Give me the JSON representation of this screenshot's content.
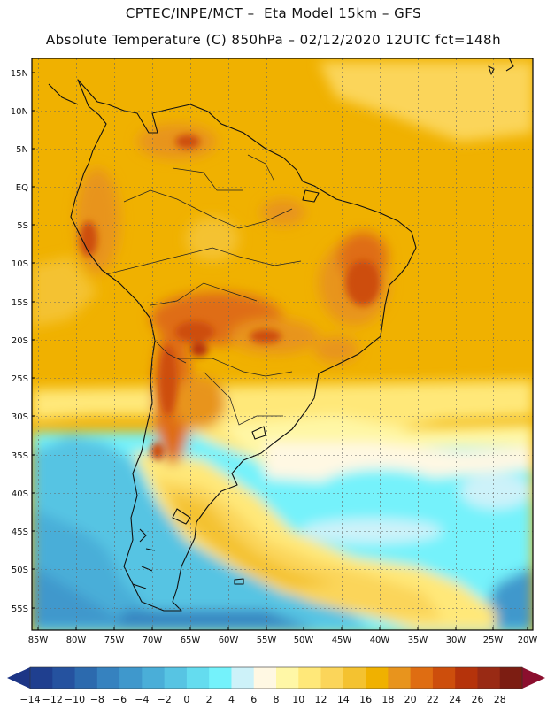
{
  "header": {
    "line1": "CPTEC/INPE/MCT –  Eta Model 15km – GFS",
    "line2": "Absolute Temperature (C) 850hPa – 02/12/2020 12UTC fct=148h"
  },
  "map": {
    "lat_labels": [
      "15N",
      "10N",
      "5N",
      "EQ",
      "5S",
      "10S",
      "15S",
      "20S",
      "25S",
      "30S",
      "35S",
      "40S",
      "45S",
      "50S",
      "55S"
    ],
    "lon_labels": [
      "85W",
      "80W",
      "75W",
      "70W",
      "65W",
      "60W",
      "55W",
      "50W",
      "45W",
      "40W",
      "35W",
      "30W",
      "25W",
      "20W"
    ]
  },
  "colorbar": {
    "labels": [
      "-14",
      "-12",
      "-10",
      "-8",
      "-6",
      "-4",
      "-2",
      "0",
      "2",
      "4",
      "6",
      "8",
      "10",
      "12",
      "14",
      "16",
      "18",
      "20",
      "22",
      "24",
      "26",
      "28"
    ],
    "colors": [
      "#1f3f8f",
      "#25529f",
      "#2c6aae",
      "#3682bf",
      "#3f98cc",
      "#4aaed8",
      "#57c4e3",
      "#64dcef",
      "#74f2fb",
      "#cdf2f9",
      "#fff8e3",
      "#fff7a6",
      "#ffe879",
      "#fbd55a",
      "#f4c230",
      "#f0b100",
      "#e8941d",
      "#df6d12",
      "#cd4e0c",
      "#b5330b",
      "#992a14",
      "#7c1d12"
    ],
    "under_color": "#1d3586",
    "over_color": "#8b0f2e"
  }
}
